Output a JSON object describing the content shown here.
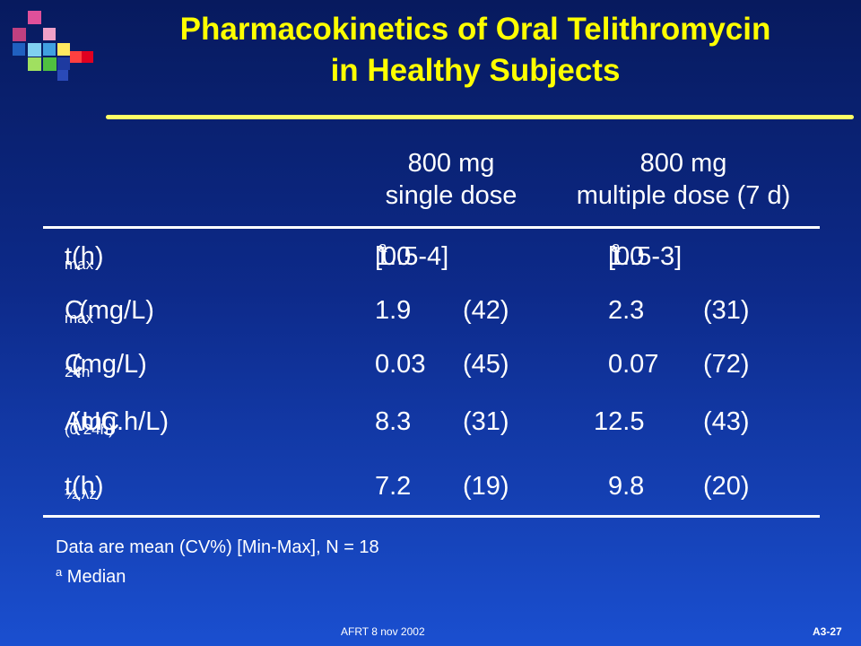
{
  "title": {
    "line1": "Pharmacokinetics of Oral Telithromycin",
    "line2": "in Healthy Subjects"
  },
  "columns": {
    "single": {
      "line1": "800 mg",
      "line2": "single dose"
    },
    "multiple": {
      "line1": "800 mg",
      "line2": "multiple dose (7 d)"
    }
  },
  "rows": [
    {
      "label": "t",
      "label_sub": "max",
      "label_rest": " (h)",
      "single_value": "1.0",
      "single_sup": "a",
      "single_extra": "[0.5-4]",
      "multiple_value": "1.0",
      "multiple_sup": "a",
      "multiple_extra": "[0.5-3]"
    },
    {
      "label": "C",
      "label_sub": "max",
      "label_rest": "  (mg/L)",
      "single_value": "1.9",
      "single_extra": "(42)",
      "multiple_value": "2.3",
      "multiple_extra": "(31)"
    },
    {
      "label": "C",
      "label_sub": "24h",
      "label_rest": " (mg/L)",
      "single_value": "0.03",
      "single_extra": "(45)",
      "multiple_value": "0.07",
      "multiple_extra": "(72)"
    },
    {
      "label": "AUC",
      "label_sub": "(0-24h)",
      "label_rest": " (mg.h/L)",
      "single_value": "8.3",
      "single_extra": "(31)",
      "multiple_value": "12.5",
      "multiple_extra": "(43)"
    },
    {
      "label": "t",
      "label_sub": "½,λz",
      "label_rest": " (h)",
      "single_value": "7.2",
      "single_extra": "(19)",
      "multiple_value": "9.8",
      "multiple_extra": "(20)"
    }
  ],
  "notes": {
    "line1": "Data are mean (CV%) [Min-Max], N = 18",
    "line2_sup": "a",
    "line2": " Median"
  },
  "footer": {
    "center": "AFRT 8 nov 2002",
    "page": "A3-27"
  },
  "colors": {
    "title": "#ffff00",
    "rule": "#ffff66",
    "text": "#ffffff"
  }
}
